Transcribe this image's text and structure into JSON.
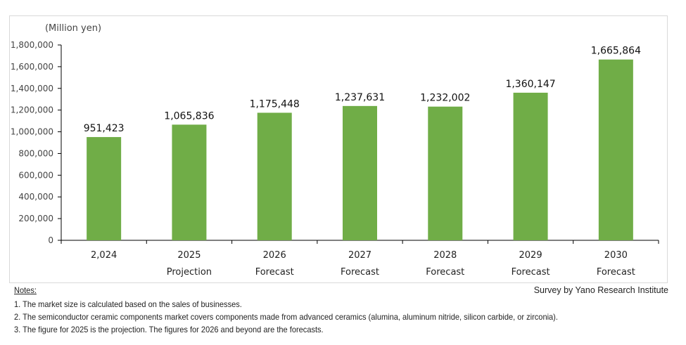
{
  "chart_data": {
    "type": "bar",
    "ylabel": "(Million yen)",
    "categories": [
      "2,024",
      "2025",
      "2026",
      "2027",
      "2028",
      "2029",
      "2030"
    ],
    "category_sublabels": [
      "",
      "Projection",
      "Forecast",
      "Forecast",
      "Forecast",
      "Forecast",
      "Forecast"
    ],
    "values": [
      951423,
      1065836,
      1175448,
      1237631,
      1232002,
      1360147,
      1665864
    ],
    "data_labels": [
      "951,423",
      "1,065,836",
      "1,175,448",
      "1,237,631",
      "1,232,002",
      "1,360,147",
      "1,665,864"
    ],
    "ylim": [
      0,
      1800000
    ],
    "yticks": [
      "0",
      "200,000",
      "400,000",
      "600,000",
      "800,000",
      "1,000,000",
      "1,200,000",
      "1,400,000",
      "1,600,000",
      "1,800,000"
    ],
    "grid": false,
    "bar_color": "#70ad47"
  },
  "notes": {
    "heading": "Notes:",
    "items": [
      "1.  The market size is calculated based on the sales of businesses.",
      "2.  The semiconductor ceramic components market covers components made from advanced ceramics (alumina, aluminum nitride, silicon carbide, or zirconia).",
      "3.  The figure for 2025 is the projection. The figures for 2026 and beyond are the forecasts."
    ]
  },
  "source": "Survey by Yano Research Institute"
}
